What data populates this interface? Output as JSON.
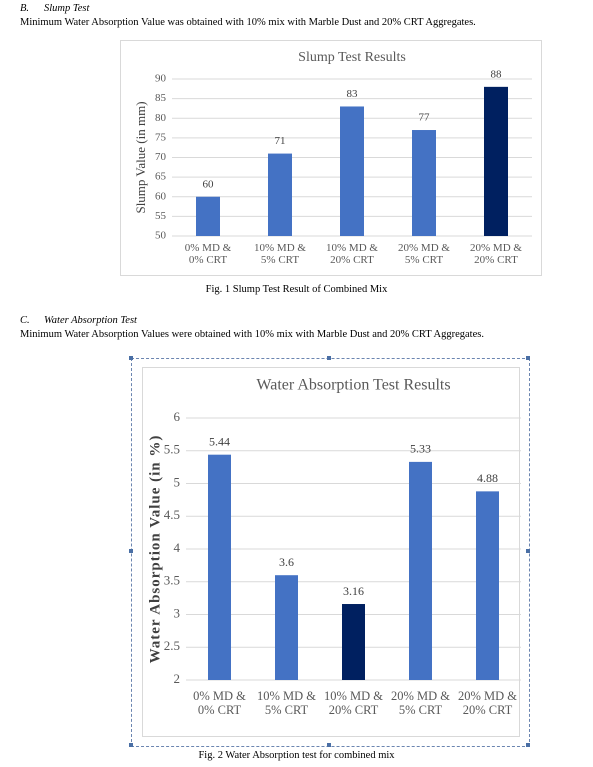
{
  "section_b": {
    "label": "B.",
    "title": "Slump Test",
    "text": "Minimum Water Absorption Value was obtained with 10% mix with Marble Dust and 20% CRT Aggregates."
  },
  "figure_1_caption": "Fig. 1  Slump Test Result of Combined Mix",
  "section_c": {
    "label": "C.",
    "title": "Water Absorption Test",
    "text": "Minimum Water Absorption Values were obtained with 10% mix with Marble Dust and 20% CRT Aggregates."
  },
  "figure_2_caption": "Fig. 2 Water Absorption test for combined mix",
  "chart_data": [
    {
      "type": "bar",
      "title": "Slump  Test Results",
      "y_label": "Slump Value (in mm)",
      "categories": [
        "0% MD & 0% CRT",
        "10% MD & 5% CRT",
        "10% MD & 20% CRT",
        "20% MD & 5% CRT",
        "20% MD & 20% CRT"
      ],
      "values": [
        60,
        71,
        83,
        77,
        88
      ],
      "colors": [
        "#4472c4",
        "#4472c4",
        "#4472c4",
        "#4472c4",
        "#002060"
      ],
      "ylim": [
        50,
        90
      ],
      "yticks": [
        50,
        55,
        60,
        65,
        70,
        75,
        80,
        85,
        90
      ],
      "grid": true
    },
    {
      "type": "bar",
      "title": "Water Absorption  Test Results",
      "y_label": "Water Absorption  Value  (in %)",
      "categories": [
        "0% MD & 0% CRT",
        "10% MD & 5% CRT",
        "10% MD & 20% CRT",
        "20% MD & 5% CRT",
        "20% MD & 20% CRT"
      ],
      "values": [
        5.44,
        3.6,
        3.16,
        5.33,
        4.88
      ],
      "colors": [
        "#4472c4",
        "#4472c4",
        "#002060",
        "#4472c4",
        "#4472c4"
      ],
      "ylim": [
        2,
        6
      ],
      "yticks": [
        2,
        2.5,
        3,
        3.5,
        4,
        4.5,
        5,
        5.5,
        6
      ],
      "grid": true
    }
  ]
}
